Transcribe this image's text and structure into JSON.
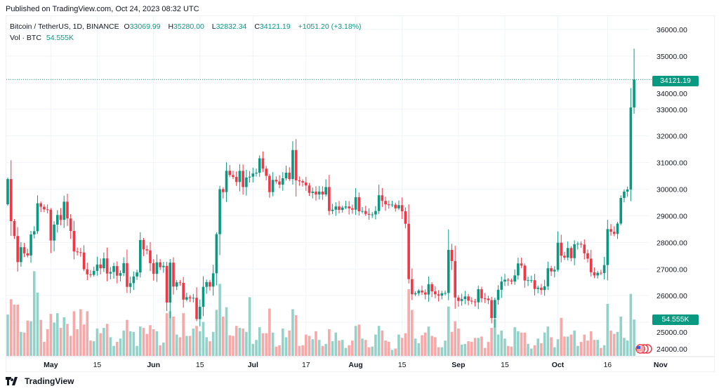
{
  "published": "Published on TradingView.com, Oct 24, 2023 08:32 UTC",
  "legend": {
    "symbol": "Bitcoin / TetherUS, 1D, BINANCE",
    "o_label": "O",
    "o": "33069.99",
    "h_label": "H",
    "h": "35280.00",
    "l_label": "L",
    "l": "32832.34",
    "c_label": "C",
    "c": "34121.19",
    "change": "+1051.20 (+3.18%)",
    "vol_label": "Vol · BTC",
    "vol": "54.555K"
  },
  "last_price_tag": "34121.19",
  "volume_tag": "54.555K",
  "brand": "TradingView",
  "colors": {
    "up": "#089981",
    "down": "#F23645",
    "vol_up": "#92d2c8",
    "vol_down": "#f7a8a8",
    "grid": "#f0f3fa"
  },
  "chart_data": {
    "type": "candlestick",
    "title": "Bitcoin / TetherUS, 1D, BINANCE",
    "start_date": "2023-04-18",
    "first_open": 29430,
    "closes": [
      30380,
      28800,
      28240,
      27260,
      27820,
      27590,
      27510,
      28300,
      28420,
      29470,
      29340,
      29240,
      29230,
      28070,
      28670,
      29030,
      28850,
      29530,
      28900,
      28430,
      27660,
      27630,
      27620,
      26990,
      26800,
      26780,
      26930,
      27170,
      27030,
      27400,
      26830,
      26890,
      27110,
      26750,
      26850,
      27220,
      26330,
      26470,
      26720,
      26870,
      28090,
      27740,
      27700,
      27220,
      26820,
      27250,
      27070,
      27120,
      25740,
      27240,
      26340,
      26500,
      26480,
      25850,
      25940,
      25900,
      25920,
      25120,
      25580,
      26330,
      26510,
      26340,
      26840,
      28310,
      30000,
      29890,
      30690,
      30530,
      30460,
      30270,
      30690,
      30080,
      30440,
      30470,
      30590,
      30620,
      31160,
      30770,
      30500,
      29890,
      30350,
      30290,
      30170,
      30410,
      30620,
      30380,
      31470,
      30330,
      30300,
      30250,
      30140,
      29860,
      29910,
      29800,
      29910,
      29800,
      30080,
      29180,
      29230,
      29350,
      29220,
      29310,
      29350,
      29280,
      29230,
      29700,
      29170,
      29180,
      29070,
      29040,
      29050,
      29180,
      29770,
      29560,
      29430,
      29400,
      29420,
      29280,
      29400,
      29170,
      28700,
      26620,
      26050,
      26090,
      26190,
      26120,
      26040,
      26430,
      26160,
      26050,
      26000,
      26090,
      26100,
      27720,
      27300,
      25930,
      25800,
      25870,
      25970,
      25810,
      25780,
      25750,
      26240,
      25900,
      25890,
      25830,
      25160,
      25840,
      26220,
      26530,
      26600,
      26570,
      26530,
      26760,
      27210,
      27130,
      26570,
      26580,
      26580,
      26250,
      26300,
      26210,
      26350,
      27030,
      26910,
      26970,
      27990,
      27500,
      27430,
      27790,
      27410,
      27930,
      27950,
      27920,
      27590,
      27390,
      26880,
      26760,
      26860,
      26850,
      27150,
      28500,
      28400,
      28320,
      28710,
      29670,
      29910,
      29990,
      33070,
      34121.19
    ],
    "last_candle": {
      "open": 33069.99,
      "high": 35280.0,
      "low": 32832.34,
      "close": 34121.19
    },
    "volumes_k": [
      62,
      85,
      77,
      77,
      36,
      35,
      53,
      52,
      127,
      95,
      54,
      21,
      40,
      63,
      50,
      64,
      42,
      58,
      48,
      30,
      67,
      40,
      70,
      47,
      67,
      23,
      22,
      41,
      34,
      42,
      48,
      28,
      15,
      21,
      26,
      38,
      54,
      37,
      36,
      15,
      44,
      42,
      33,
      46,
      40,
      37,
      16,
      20,
      64,
      67,
      59,
      32,
      28,
      64,
      30,
      30,
      41,
      45,
      37,
      51,
      28,
      22,
      36,
      69,
      108,
      59,
      73,
      31,
      30,
      45,
      42,
      41,
      36,
      88,
      18,
      24,
      43,
      34,
      34,
      71,
      35,
      14,
      16,
      41,
      28,
      38,
      70,
      61,
      15,
      16,
      32,
      30,
      25,
      37,
      24,
      15,
      18,
      40,
      22,
      35,
      23,
      24,
      12,
      16,
      23,
      45,
      47,
      26,
      24,
      13,
      14,
      32,
      45,
      38,
      23,
      21,
      9,
      11,
      32,
      27,
      34,
      100,
      69,
      26,
      19,
      31,
      35,
      44,
      30,
      28,
      13,
      13,
      23,
      74,
      36,
      52,
      41,
      17,
      18,
      22,
      21,
      27,
      27,
      29,
      12,
      21,
      42,
      55,
      32,
      38,
      26,
      15,
      14,
      43,
      37,
      35,
      35,
      18,
      11,
      16,
      26,
      19,
      35,
      44,
      28,
      13,
      25,
      57,
      29,
      29,
      32,
      38,
      15,
      21,
      32,
      23,
      37,
      24,
      24,
      12,
      16,
      78,
      38,
      33,
      36,
      59,
      27,
      23,
      93,
      54.555
    ],
    "price_axis": {
      "min": 24000,
      "max": 36000,
      "step": 1000,
      "labels": [
        "24000.00",
        "25000.00",
        "26000.00",
        "27000.00",
        "28000.00",
        "29000.00",
        "30000.00",
        "31000.00",
        "32000.00",
        "33000.00",
        "34000.00",
        "35000.00",
        "36000.00"
      ]
    },
    "time_ticks": [
      {
        "label": "May",
        "day": 13,
        "bold": true
      },
      {
        "label": "15",
        "day": 27
      },
      {
        "label": "Jun",
        "day": 44,
        "bold": true
      },
      {
        "label": "15",
        "day": 58
      },
      {
        "label": "Jul",
        "day": 74,
        "bold": true
      },
      {
        "label": "17",
        "day": 90
      },
      {
        "label": "Aug",
        "day": 105,
        "bold": true
      },
      {
        "label": "15",
        "day": 119
      },
      {
        "label": "Sep",
        "day": 136,
        "bold": true
      },
      {
        "label": "15",
        "day": 150
      },
      {
        "label": "Oct",
        "day": 166,
        "bold": true
      },
      {
        "label": "16",
        "day": 181
      },
      {
        "label": "Nov",
        "day": 197,
        "bold": true
      }
    ]
  }
}
